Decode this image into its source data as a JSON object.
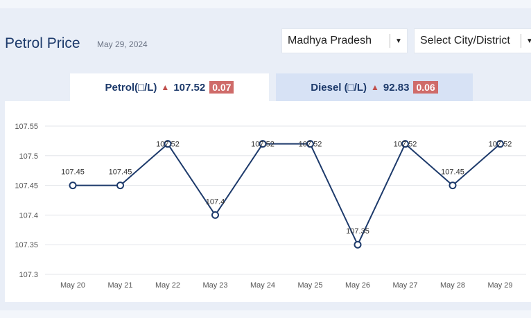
{
  "header": {
    "title": "Petrol Price",
    "date": "May 29, 2024"
  },
  "filters": {
    "state": "Madhya Pradesh",
    "city": "Select City/District"
  },
  "tabs": {
    "petrol": {
      "label": "Petrol(□/L)",
      "price": "107.52",
      "change": "0.07"
    },
    "diesel": {
      "label": "Diesel (□/L)",
      "price": "92.83",
      "change": "0.06"
    }
  },
  "colors": {
    "line": "#1d3a6b",
    "up_arrow": "#c0504d",
    "change_badge": "#cf6b69"
  },
  "chart_data": {
    "type": "line",
    "categories": [
      "May 20",
      "May 21",
      "May 22",
      "May 23",
      "May 24",
      "May 25",
      "May 26",
      "May 27",
      "May 28",
      "May 29"
    ],
    "series": [
      {
        "values": [
          107.45,
          107.45,
          107.52,
          107.4,
          107.52,
          107.52,
          107.35,
          107.52,
          107.45,
          107.52
        ]
      }
    ],
    "data_labels": [
      "107.45",
      "107.45",
      "107.52",
      "107.4",
      "107.52",
      "107.52",
      "107.35",
      "107.52",
      "107.45",
      "107.52"
    ],
    "y_ticks": [
      "107.55",
      "107.5",
      "107.45",
      "107.4",
      "107.35",
      "107.3"
    ],
    "ylim": [
      107.3,
      107.55
    ],
    "grid": true
  }
}
